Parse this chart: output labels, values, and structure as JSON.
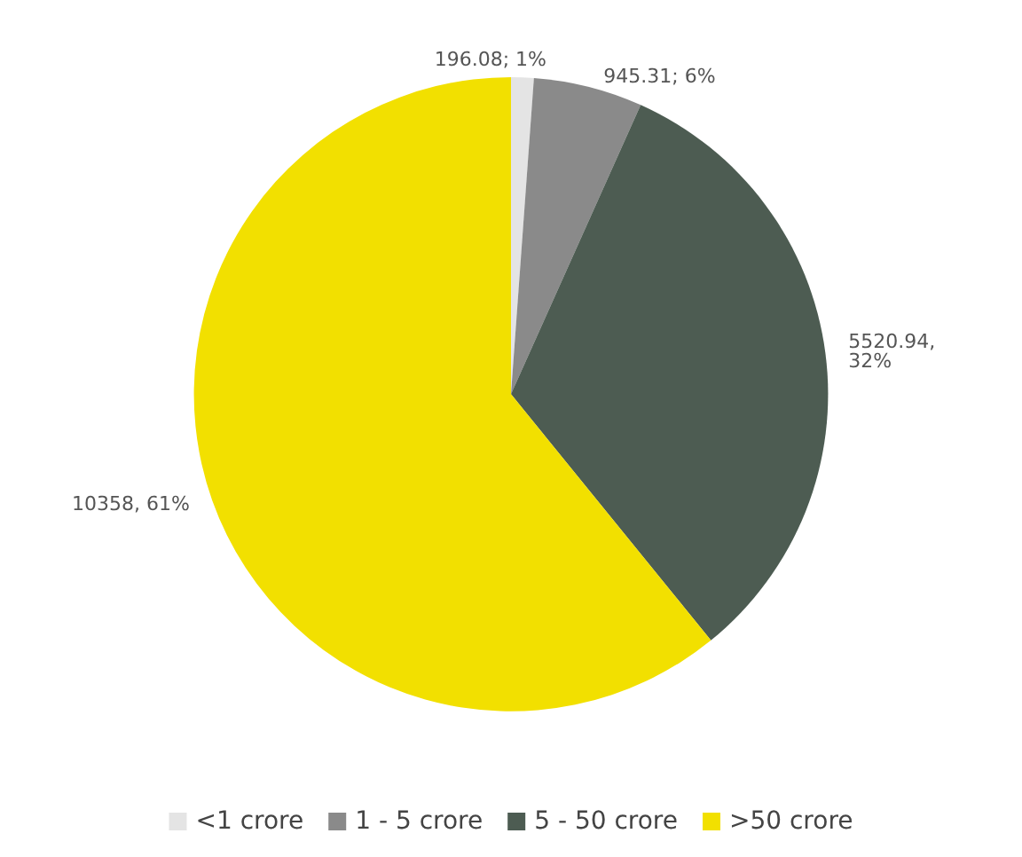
{
  "chart_data": {
    "type": "pie",
    "categories": [
      "<1 crore",
      "1 - 5 crore",
      "5 - 50 crore",
      ">50 crore"
    ],
    "values": [
      196.08,
      945.31,
      5520.94,
      10358
    ],
    "colors": [
      "#e4e4e4",
      "#8a8a8a",
      "#4d5c52",
      "#f2e000"
    ],
    "value_labels": [
      "196.08; 1%",
      "945.31; 6%",
      "5520.94,\n32%",
      "10358, 61%"
    ],
    "legend": "bottom"
  }
}
